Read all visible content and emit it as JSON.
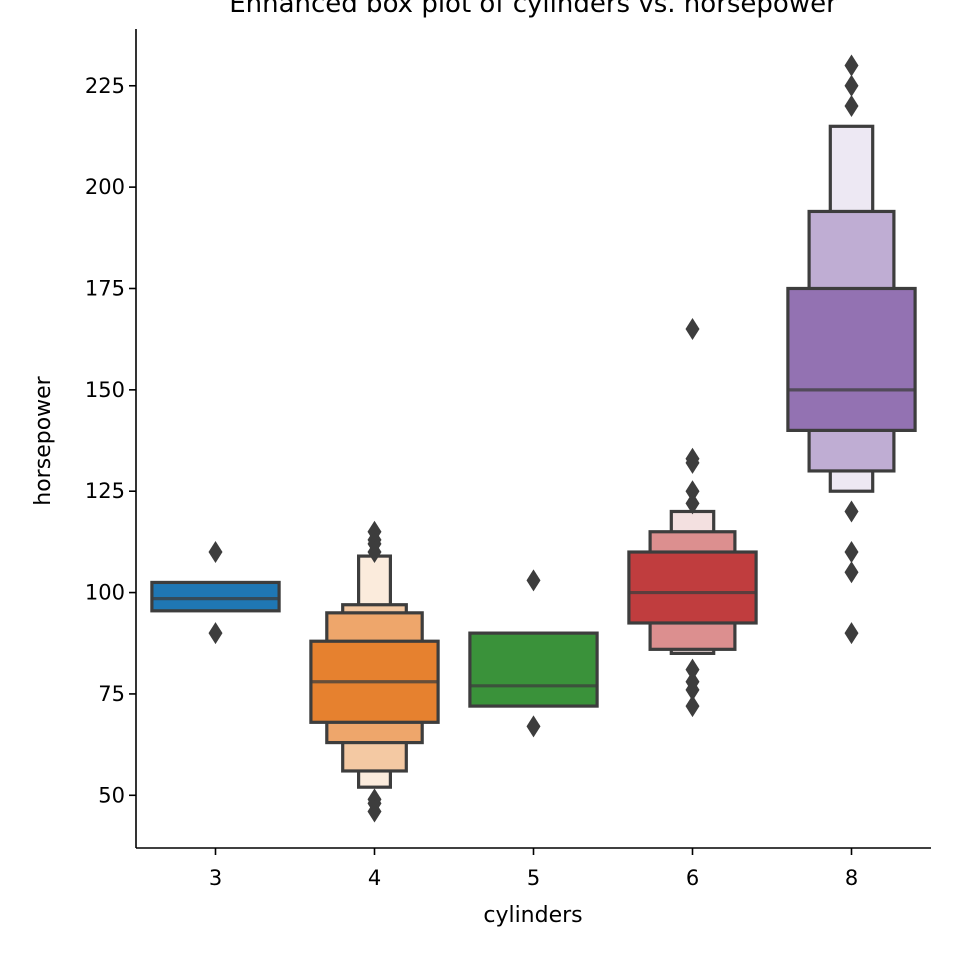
{
  "chart_data": {
    "type": "boxen",
    "title": "Enhanced box plot of cylinders vs. horsepower",
    "xlabel": "cylinders",
    "ylabel": "horsepower",
    "categories": [
      "3",
      "4",
      "5",
      "6",
      "8"
    ],
    "yticks": [
      50,
      75,
      100,
      125,
      150,
      175,
      200,
      225
    ],
    "ylim": [
      37,
      239
    ],
    "grid": false,
    "groups": [
      {
        "category": "3",
        "color": "#1f77b4",
        "median": 98.5,
        "levels": [
          {
            "low": 95.5,
            "high": 102.5,
            "fill": "#1f77b4"
          }
        ],
        "outliers": [
          110,
          90
        ]
      },
      {
        "category": "4",
        "color": "#ff7f0e",
        "median": 78,
        "levels": [
          {
            "low": 68,
            "high": 88,
            "fill": "#e6812f"
          },
          {
            "low": 63,
            "high": 95,
            "fill": "#eea66b"
          },
          {
            "low": 56,
            "high": 97,
            "fill": "#f4c9a3"
          },
          {
            "low": 52,
            "high": 109,
            "fill": "#fbebdc"
          }
        ],
        "outliers": [
          115,
          113,
          112,
          110,
          49,
          48,
          46
        ]
      },
      {
        "category": "5",
        "color": "#2ca02c",
        "median": 77,
        "levels": [
          {
            "low": 72,
            "high": 90,
            "fill": "#3a923a"
          }
        ],
        "outliers": [
          103,
          67
        ]
      },
      {
        "category": "6",
        "color": "#d62728",
        "median": 100,
        "levels": [
          {
            "low": 92.5,
            "high": 110,
            "fill": "#c03d3e"
          },
          {
            "low": 86,
            "high": 115,
            "fill": "#dc8f8f"
          },
          {
            "low": 85,
            "high": 120,
            "fill": "#f3e0e0"
          }
        ],
        "outliers": [
          165,
          133,
          132,
          125,
          122,
          81,
          78,
          76,
          72
        ]
      },
      {
        "category": "8",
        "color": "#9467bd",
        "median": 150,
        "levels": [
          {
            "low": 140,
            "high": 175,
            "fill": "#9372b2"
          },
          {
            "low": 130,
            "high": 194,
            "fill": "#bfadd3"
          },
          {
            "low": 125,
            "high": 215,
            "fill": "#ede8f3"
          }
        ],
        "outliers": [
          230,
          225,
          220,
          120,
          110,
          105,
          90
        ]
      }
    ]
  }
}
